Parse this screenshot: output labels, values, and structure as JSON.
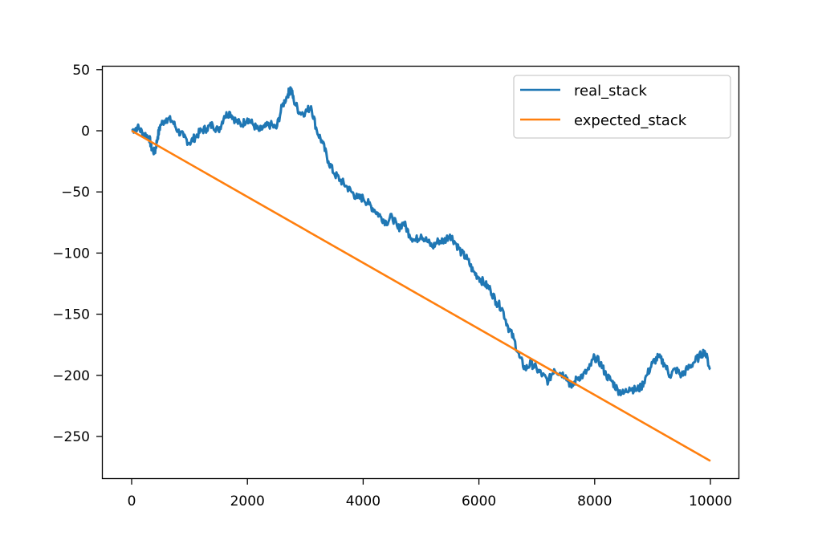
{
  "chart_data": {
    "type": "line",
    "title": "",
    "xlabel": "",
    "ylabel": "",
    "xlim": [
      -500,
      10500
    ],
    "ylim": [
      -284,
      53
    ],
    "grid": false,
    "legend_position": "upper right",
    "x_ticks": [
      0,
      2000,
      4000,
      6000,
      8000,
      10000
    ],
    "x_tick_labels": [
      "0",
      "2000",
      "4000",
      "6000",
      "8000",
      "10000"
    ],
    "y_ticks": [
      50,
      0,
      -50,
      -100,
      -150,
      -200,
      -250
    ],
    "y_tick_labels": [
      "50",
      "0",
      "−50",
      "−100",
      "−150",
      "−200",
      "−250"
    ],
    "series": [
      {
        "name": "real_stack",
        "color": "#1f77b4",
        "x": [
          0,
          100,
          200,
          300,
          350,
          400,
          450,
          500,
          600,
          700,
          800,
          900,
          1000,
          1100,
          1200,
          1300,
          1400,
          1500,
          1600,
          1700,
          1800,
          1900,
          2000,
          2100,
          2200,
          2300,
          2400,
          2500,
          2600,
          2700,
          2750,
          2800,
          2900,
          3000,
          3100,
          3200,
          3300,
          3400,
          3500,
          3600,
          3700,
          3800,
          3900,
          4000,
          4100,
          4200,
          4300,
          4400,
          4500,
          4600,
          4700,
          4800,
          4900,
          5000,
          5100,
          5200,
          5300,
          5400,
          5500,
          5600,
          5700,
          5800,
          5900,
          6000,
          6100,
          6200,
          6300,
          6400,
          6500,
          6600,
          6700,
          6800,
          6900,
          7000,
          7100,
          7200,
          7300,
          7400,
          7500,
          7600,
          7700,
          7800,
          7900,
          8000,
          8100,
          8200,
          8300,
          8400,
          8500,
          8600,
          8700,
          8800,
          8900,
          9000,
          9100,
          9200,
          9300,
          9400,
          9500,
          9600,
          9700,
          9800,
          9900,
          10000
        ],
        "values": [
          0,
          3,
          -2,
          -5,
          -15,
          -18,
          -5,
          5,
          10,
          8,
          0,
          -5,
          -10,
          -5,
          0,
          2,
          5,
          0,
          12,
          15,
          8,
          5,
          10,
          5,
          0,
          3,
          5,
          2,
          20,
          30,
          35,
          25,
          15,
          15,
          20,
          0,
          -10,
          -25,
          -35,
          -40,
          -45,
          -50,
          -55,
          -55,
          -60,
          -65,
          -70,
          -75,
          -70,
          -80,
          -75,
          -85,
          -90,
          -85,
          -90,
          -95,
          -90,
          -90,
          -85,
          -92,
          -100,
          -105,
          -115,
          -120,
          -125,
          -130,
          -140,
          -145,
          -160,
          -170,
          -185,
          -195,
          -190,
          -195,
          -200,
          -205,
          -195,
          -198,
          -200,
          -210,
          -202,
          -200,
          -195,
          -185,
          -190,
          -200,
          -205,
          -212,
          -215,
          -210,
          -212,
          -210,
          -200,
          -190,
          -185,
          -190,
          -200,
          -195,
          -200,
          -195,
          -190,
          -185,
          -180,
          -195
        ]
      },
      {
        "name": "expected_stack",
        "color": "#ff7f0e",
        "x": [
          0,
          10000
        ],
        "values": [
          0,
          -270
        ]
      }
    ]
  },
  "legend": {
    "items": [
      {
        "label": "real_stack",
        "color": "#1f77b4"
      },
      {
        "label": "expected_stack",
        "color": "#ff7f0e"
      }
    ]
  }
}
